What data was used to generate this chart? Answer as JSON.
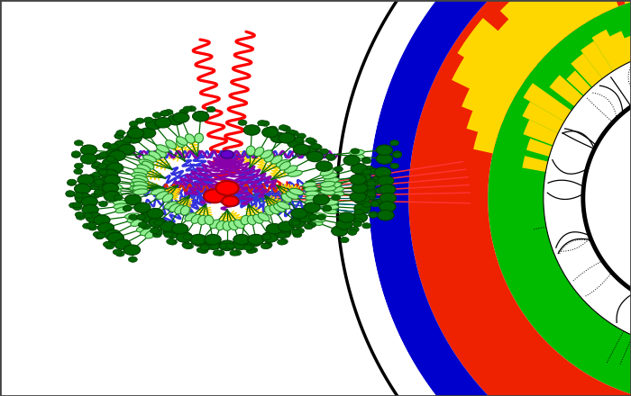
{
  "fig_width": 7.0,
  "fig_height": 4.4,
  "dpi": 100,
  "bg_color": "#ffffff",
  "pcx": 0.365,
  "pcy": 0.5,
  "dcx": 1.1,
  "dcy": 0.5,
  "r_tracker_inner": 0.28,
  "r_tracker_outer": 0.38,
  "r_ecal_outer": 0.52,
  "r_hcal_outer": 0.72,
  "r_magnet_outer": 0.82,
  "r_outer_arc": 0.9,
  "colors": {
    "tracker_fill": "#ffffff",
    "ecal": "#00bb00",
    "hcal": "#ee2200",
    "magnet": "#0000cc",
    "outer_white": "#ffffff",
    "blue_arc": "#0000cc",
    "yellow": "#FFD700",
    "dark_green_particle": "#006400",
    "light_green_ellipse": "#90ee90",
    "spring_blue": "#3333dd",
    "spring_red": "#dd2200",
    "spring_purple": "#8800aa",
    "spring_dark_purple": "#6600aa",
    "wavy_red": "#ff0000",
    "red_vertex": "#ff0000",
    "teal_line": "#008888",
    "yellow_zigzag": "#FFD700"
  }
}
